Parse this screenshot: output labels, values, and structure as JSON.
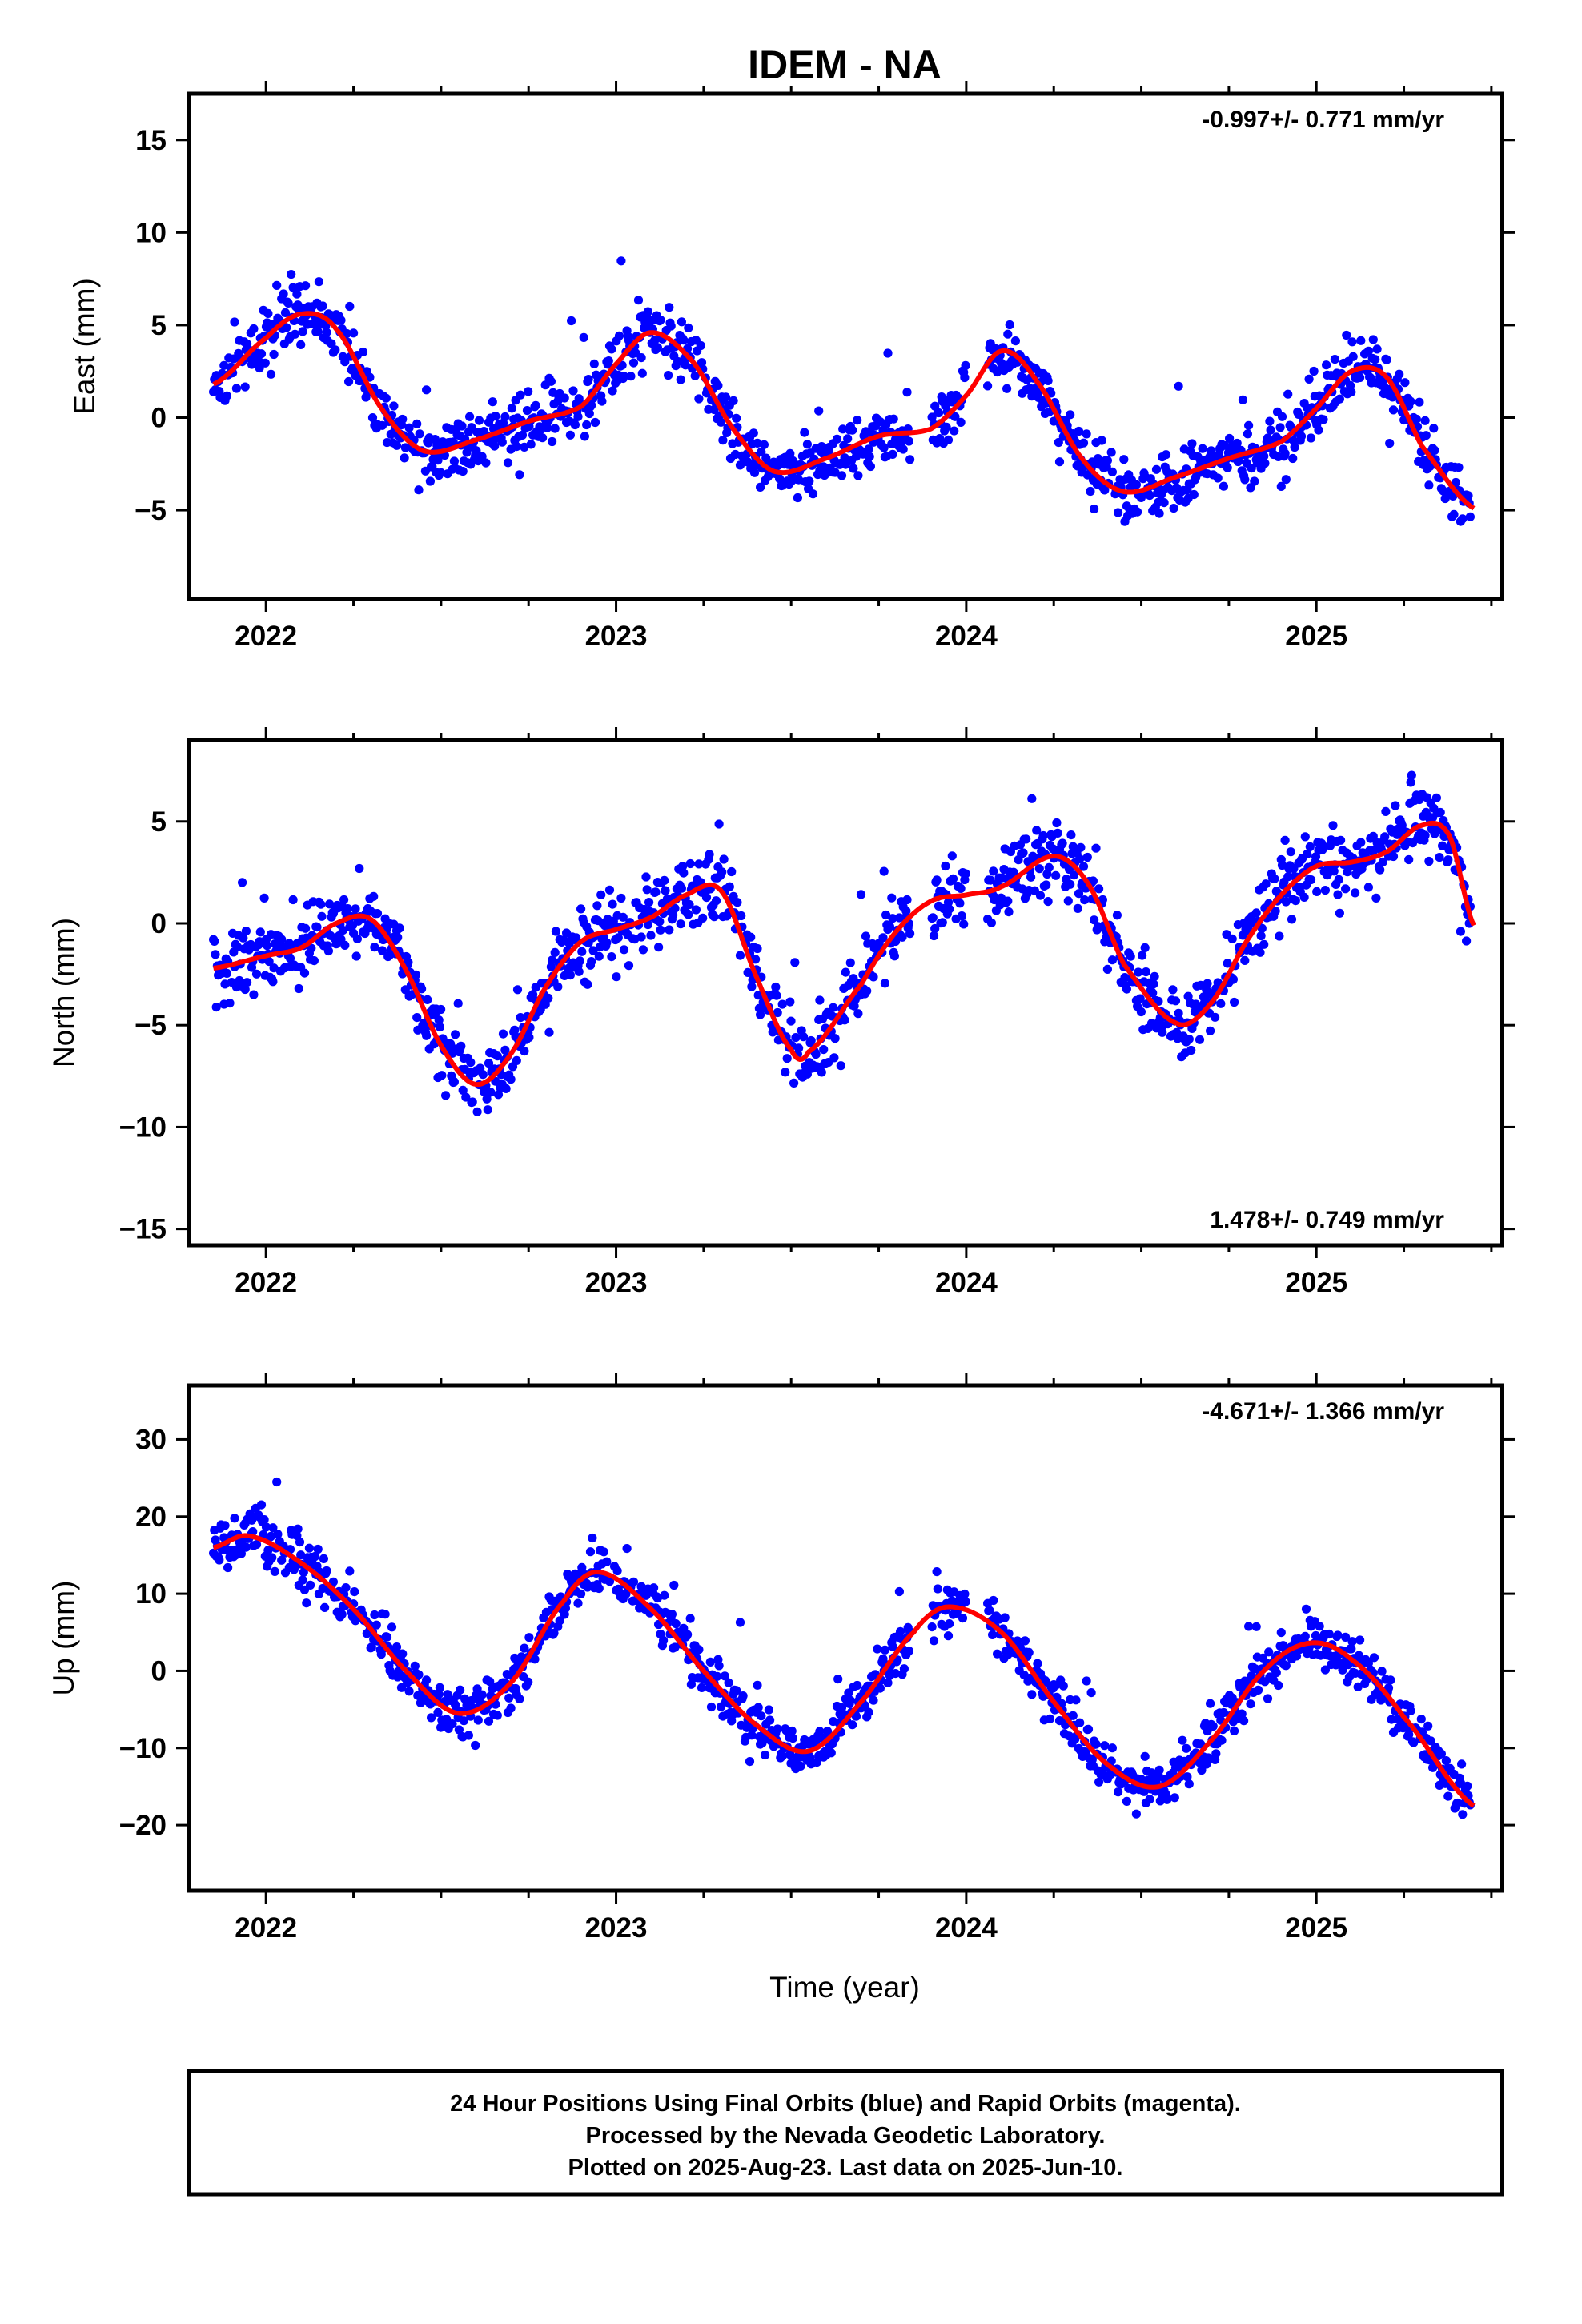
{
  "figure": {
    "title": "IDEM - NA",
    "xlabel": "Time (year)",
    "footer": [
      "24 Hour Positions Using Final Orbits (blue) and Rapid Orbits (magenta).",
      "Processed by the Nevada Geodetic Laboratory.",
      "Plotted on 2025-Aug-23. Last data on 2025-Jun-10."
    ],
    "colors": {
      "data": "#0000ff",
      "model": "#ff0000",
      "frame": "#000000"
    }
  },
  "chart_data": [
    {
      "type": "scatter",
      "ylabel": "East (mm)",
      "rate_label": "-0.997+/- 0.771 mm/yr",
      "rate_position": "top-right",
      "xlim": [
        2021.78,
        2025.53
      ],
      "ylim": [
        -9.8,
        17.5
      ],
      "x_ticks": [
        "2022",
        "2023",
        "2024",
        "2025"
      ],
      "y_ticks": [
        "15",
        "10",
        "5",
        "0",
        "-5"
      ],
      "y_tick_values": [
        15,
        10,
        5,
        0,
        -5
      ],
      "series": [
        {
          "x": [
            2021.85,
            2022.0,
            2022.1,
            2022.2,
            2022.33,
            2022.45,
            2022.6,
            2022.75,
            2022.9,
            2023.0,
            2023.1,
            2023.22,
            2023.33,
            2023.45,
            2023.6,
            2023.75,
            2023.9,
            2024.0,
            2024.1,
            2024.2,
            2024.33,
            2024.45,
            2024.6,
            2024.75,
            2024.9,
            2025.0,
            2025.1,
            2025.2,
            2025.3,
            2025.45
          ],
          "y": [
            1.8,
            4.3,
            5.6,
            4.8,
            0.5,
            -1.8,
            -1.2,
            -0.2,
            0.6,
            2.9,
            4.6,
            3.0,
            -0.5,
            -2.9,
            -2.2,
            -1.0,
            -0.6,
            1.2,
            3.6,
            2.0,
            -2.2,
            -4.0,
            -3.2,
            -2.2,
            -1.3,
            0.5,
            2.5,
            2.2,
            -1.5,
            -4.9
          ]
        }
      ]
    },
    {
      "type": "scatter",
      "ylabel": "North (mm)",
      "rate_label": "1.478+/- 0.749 mm/yr",
      "rate_position": "bottom-right",
      "xlim": [
        2021.78,
        2025.53
      ],
      "ylim": [
        -15.8,
        9.0
      ],
      "x_ticks": [
        "2022",
        "2023",
        "2024",
        "2025"
      ],
      "y_ticks": [
        "5",
        "0",
        "-5",
        "-10",
        "-15"
      ],
      "y_tick_values": [
        5,
        0,
        -5,
        -10,
        -15
      ],
      "series": [
        {
          "x": [
            2021.85,
            2022.0,
            2022.1,
            2022.2,
            2022.3,
            2022.4,
            2022.5,
            2022.6,
            2022.7,
            2022.8,
            2022.9,
            2023.0,
            2023.1,
            2023.2,
            2023.3,
            2023.4,
            2023.5,
            2023.55,
            2023.7,
            2023.8,
            2023.9,
            2024.0,
            2024.1,
            2024.25,
            2024.35,
            2024.45,
            2024.6,
            2024.7,
            2024.8,
            2024.9,
            2025.0,
            2025.1,
            2025.2,
            2025.3,
            2025.38,
            2025.45
          ],
          "y": [
            -2.2,
            -1.6,
            -1.2,
            0.0,
            0.2,
            -2.3,
            -6.0,
            -7.9,
            -6.4,
            -3.1,
            -0.9,
            -0.3,
            0.3,
            1.4,
            1.6,
            -2.6,
            -6.2,
            -6.3,
            -3.0,
            -0.4,
            1.1,
            1.4,
            1.8,
            3.3,
            1.9,
            -2.0,
            -4.9,
            -3.9,
            -0.9,
            1.4,
            2.8,
            3.0,
            3.5,
            4.8,
            4.3,
            -0.1
          ]
        }
      ]
    },
    {
      "type": "scatter",
      "ylabel": "Up (mm)",
      "rate_label": "-4.671+/- 1.366 mm/yr",
      "rate_position": "top-right",
      "xlim": [
        2021.78,
        2025.53
      ],
      "ylim": [
        -28.5,
        37.0
      ],
      "x_ticks": [
        "2022",
        "2023",
        "2024",
        "2025"
      ],
      "y_ticks": [
        "30",
        "20",
        "10",
        "0",
        "-10",
        "-20"
      ],
      "y_tick_values": [
        30,
        20,
        10,
        0,
        -10,
        -20
      ],
      "series": [
        {
          "x": [
            2021.85,
            2021.95,
            2022.1,
            2022.25,
            2022.4,
            2022.55,
            2022.7,
            2022.85,
            2022.95,
            2023.1,
            2023.25,
            2023.4,
            2023.55,
            2023.7,
            2023.85,
            2023.95,
            2024.1,
            2024.25,
            2024.4,
            2024.55,
            2024.7,
            2024.85,
            2024.98,
            2025.1,
            2025.25,
            2025.45
          ],
          "y": [
            16,
            17.5,
            14,
            8,
            0,
            -5.5,
            -1.5,
            9,
            12.8,
            8,
            0,
            -7,
            -10.4,
            -4,
            5,
            8.3,
            5,
            -4,
            -12,
            -15,
            -9,
            0,
            3.6,
            1.5,
            -6,
            -17.5
          ]
        }
      ]
    }
  ]
}
